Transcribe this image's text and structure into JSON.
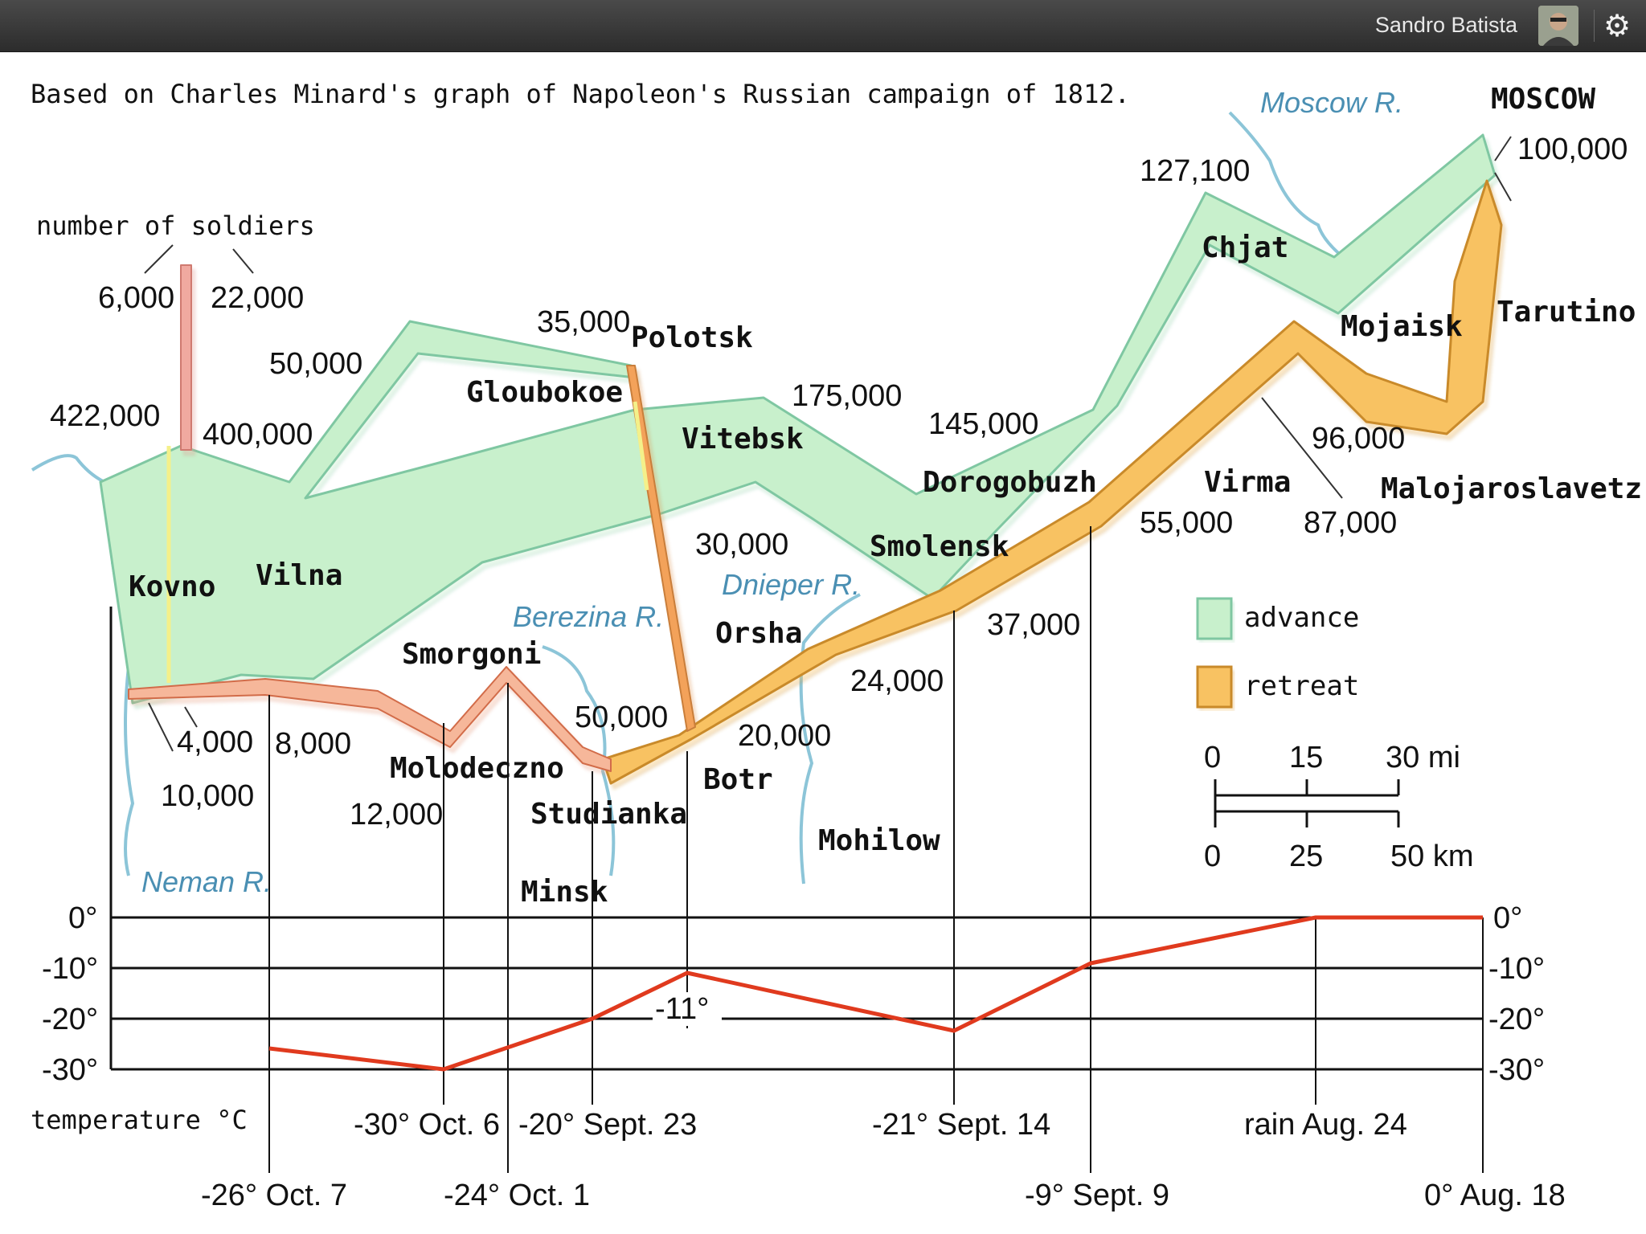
{
  "topbar": {
    "user_name": "Sandro Batista",
    "avatar_icon": "user-photo",
    "settings_icon": "gear-icon"
  },
  "caption": "Based on Charles Minard's graph of Napoleon's Russian campaign of 1812.",
  "colors": {
    "advance": "#c8f0cc",
    "advance_edge": "#7fc7a2",
    "retreat": "#f8c262",
    "retreat_edge": "#c98a2a",
    "river": "#8cc5d8",
    "temperature": "#e03a1e"
  },
  "rivers": {
    "moscow": "Moscow R.",
    "dnieper": "Dnieper R.",
    "berezina": "Berezina R.",
    "neman": "Neman R."
  },
  "cities": {
    "moscow": "MOSCOW",
    "chjat": "Chjat",
    "mojaisk": "Mojaisk",
    "tarutino": "Tarutino",
    "polotsk": "Polotsk",
    "gloubokoe": "Gloubokoe",
    "vitebsk": "Vitebsk",
    "dorogobuzh": "Dorogobuzh",
    "smolensk": "Smolensk",
    "wirma": "Virma",
    "malojaroslavetz": "Malojaroslavetz",
    "kovno": "Kovno",
    "vilna": "Vilna",
    "smorgoni": "Smorgoni",
    "molodeczno": "Molodeczno",
    "studianka": "Studianka",
    "minsk": "Minsk",
    "orsha": "Orsha",
    "botr": "Botr",
    "mohilow": "Mohilow"
  },
  "numbers": {
    "soldiers_label": "number of soldiers",
    "n6000": "6,000",
    "n22000": "22,000",
    "n422000": "422,000",
    "n400000": "400,000",
    "n50000a": "50,000",
    "n35000": "35,000",
    "n175000": "175,000",
    "n145000": "145,000",
    "n127100": "127,100",
    "n100000": "100,000",
    "n96000": "96,000",
    "n87000": "87,000",
    "n55000": "55,000",
    "n37000": "37,000",
    "n30000": "30,000",
    "n24000": "24,000",
    "n20000": "20,000",
    "n50000b": "50,000",
    "n12000": "12,000",
    "n8000": "8,000",
    "n4000": "4,000",
    "n10000": "10,000"
  },
  "legend": {
    "advance": "advance",
    "retreat": "retreat"
  },
  "scale": {
    "mi": [
      "0",
      "15",
      "30 mi"
    ],
    "km": [
      "0",
      "25",
      "50 km"
    ]
  },
  "temperature": {
    "title": "temperature °C",
    "axis": [
      "0°",
      "-10°",
      "-20°",
      "-30°"
    ],
    "peak_label": "-11°",
    "upper_dates": [
      "-30° Oct. 6",
      "-20° Sept. 23",
      "-21° Sept. 14",
      "rain Aug. 24"
    ],
    "lower_dates": [
      "-26° Oct. 7",
      "-24° Oct. 1",
      "-9° Sept. 9",
      "0° Aug. 18"
    ]
  }
}
